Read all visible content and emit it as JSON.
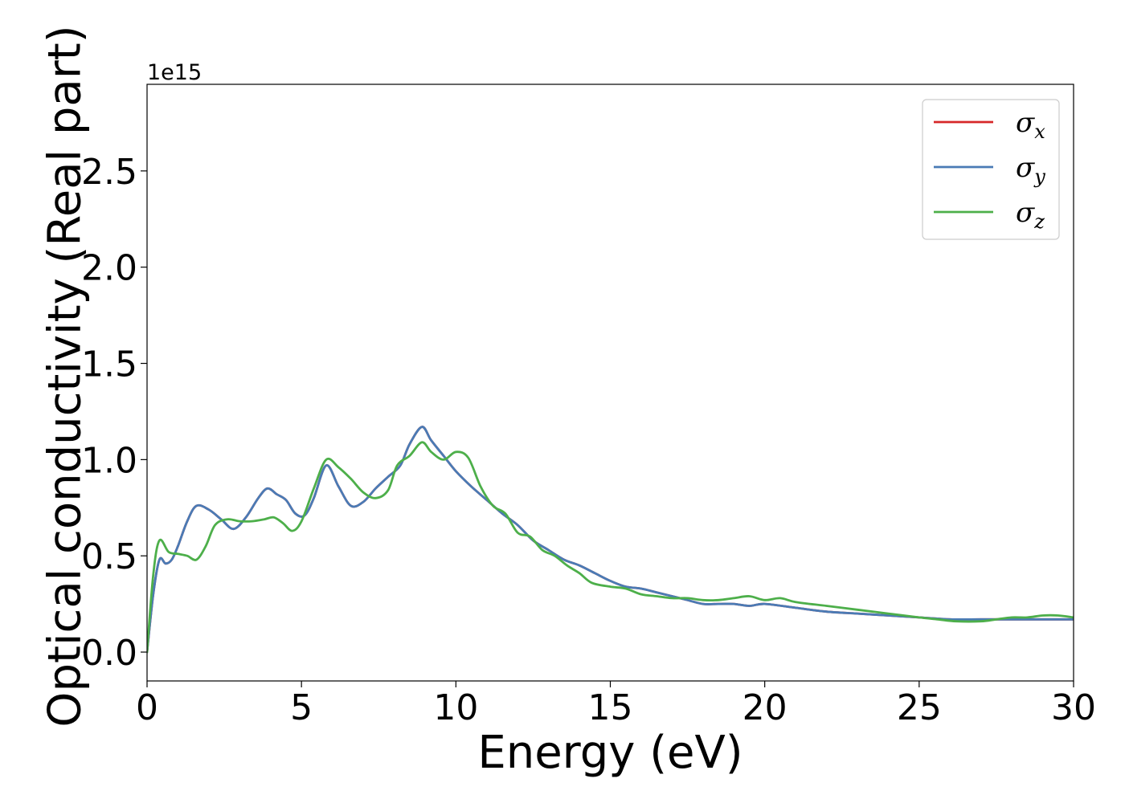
{
  "chart_data": {
    "type": "line",
    "title": "",
    "xlabel": "Energy (eV)",
    "ylabel": "Optical conductivity (Real part)",
    "y_offset_label": "1e15",
    "xlim": [
      0,
      30
    ],
    "ylim": [
      -0.15,
      2.95
    ],
    "x_ticks": [
      0,
      5,
      10,
      15,
      20,
      25,
      30
    ],
    "x_tick_labels": [
      "0",
      "5",
      "10",
      "15",
      "20",
      "25",
      "30"
    ],
    "y_ticks": [
      0.0,
      0.5,
      1.0,
      1.5,
      2.0,
      2.5
    ],
    "y_tick_labels": [
      "0.0",
      "0.5",
      "1.0",
      "1.5",
      "2.0",
      "2.5"
    ],
    "grid": false,
    "legend_position": "top-right",
    "series": [
      {
        "name": "σx",
        "legend_base": "σ",
        "legend_sub": "x",
        "color": "#d62728",
        "x": [
          0,
          0.2,
          0.4,
          0.6,
          0.8,
          1.0,
          1.3,
          1.6,
          2.0,
          2.4,
          2.8,
          3.2,
          3.6,
          3.9,
          4.2,
          4.5,
          4.8,
          5.1,
          5.4,
          5.8,
          6.2,
          6.6,
          7.0,
          7.4,
          7.8,
          8.2,
          8.5,
          8.9,
          9.2,
          9.6,
          10.0,
          10.5,
          11.0,
          11.5,
          12.0,
          12.5,
          13.0,
          13.5,
          14.0,
          14.5,
          15.0,
          15.5,
          16.0,
          16.5,
          17.0,
          17.5,
          18.0,
          18.5,
          19.0,
          19.5,
          20.0,
          21.0,
          22.0,
          23.0,
          24.0,
          25.0,
          26.0,
          27.0,
          28.0,
          29.0,
          30.0
        ],
        "y": [
          0.0,
          0.3,
          0.48,
          0.46,
          0.48,
          0.55,
          0.68,
          0.76,
          0.74,
          0.69,
          0.64,
          0.7,
          0.8,
          0.85,
          0.82,
          0.79,
          0.72,
          0.71,
          0.8,
          0.97,
          0.86,
          0.76,
          0.78,
          0.85,
          0.91,
          0.97,
          1.08,
          1.17,
          1.1,
          1.02,
          0.94,
          0.86,
          0.79,
          0.72,
          0.66,
          0.58,
          0.53,
          0.48,
          0.45,
          0.41,
          0.37,
          0.34,
          0.33,
          0.31,
          0.29,
          0.27,
          0.25,
          0.25,
          0.25,
          0.24,
          0.25,
          0.23,
          0.21,
          0.2,
          0.19,
          0.18,
          0.17,
          0.17,
          0.17,
          0.17,
          0.17
        ]
      },
      {
        "name": "σy",
        "legend_base": "σ",
        "legend_sub": "y",
        "color": "#4a7bb5",
        "x": [
          0,
          0.2,
          0.4,
          0.6,
          0.8,
          1.0,
          1.3,
          1.6,
          2.0,
          2.4,
          2.8,
          3.2,
          3.6,
          3.9,
          4.2,
          4.5,
          4.8,
          5.1,
          5.4,
          5.8,
          6.2,
          6.6,
          7.0,
          7.4,
          7.8,
          8.2,
          8.5,
          8.9,
          9.2,
          9.6,
          10.0,
          10.5,
          11.0,
          11.5,
          12.0,
          12.5,
          13.0,
          13.5,
          14.0,
          14.5,
          15.0,
          15.5,
          16.0,
          16.5,
          17.0,
          17.5,
          18.0,
          18.5,
          19.0,
          19.5,
          20.0,
          21.0,
          22.0,
          23.0,
          24.0,
          25.0,
          26.0,
          27.0,
          28.0,
          29.0,
          30.0
        ],
        "y": [
          0.0,
          0.3,
          0.48,
          0.46,
          0.48,
          0.55,
          0.68,
          0.76,
          0.74,
          0.69,
          0.64,
          0.7,
          0.8,
          0.85,
          0.82,
          0.79,
          0.72,
          0.71,
          0.8,
          0.97,
          0.86,
          0.76,
          0.78,
          0.85,
          0.91,
          0.97,
          1.08,
          1.17,
          1.1,
          1.02,
          0.94,
          0.86,
          0.79,
          0.72,
          0.66,
          0.58,
          0.53,
          0.48,
          0.45,
          0.41,
          0.37,
          0.34,
          0.33,
          0.31,
          0.29,
          0.27,
          0.25,
          0.25,
          0.25,
          0.24,
          0.25,
          0.23,
          0.21,
          0.2,
          0.19,
          0.18,
          0.17,
          0.17,
          0.17,
          0.17,
          0.17
        ]
      },
      {
        "name": "σz",
        "legend_base": "σ",
        "legend_sub": "z",
        "color": "#4daf4a",
        "x": [
          0,
          0.2,
          0.4,
          0.7,
          1.0,
          1.3,
          1.6,
          1.9,
          2.2,
          2.6,
          3.0,
          3.4,
          3.8,
          4.1,
          4.4,
          4.7,
          5.0,
          5.4,
          5.8,
          6.2,
          6.6,
          7.0,
          7.4,
          7.8,
          8.1,
          8.5,
          8.9,
          9.2,
          9.6,
          10.0,
          10.4,
          10.8,
          11.2,
          11.6,
          12.0,
          12.4,
          12.8,
          13.2,
          13.6,
          14.0,
          14.4,
          15.0,
          15.5,
          16.0,
          16.5,
          17.0,
          17.5,
          18.0,
          18.5,
          19.0,
          19.5,
          20.0,
          20.5,
          21.0,
          22.0,
          23.0,
          24.0,
          25.0,
          25.6,
          26.2,
          27.0,
          27.5,
          28.0,
          28.5,
          29.0,
          29.5,
          30.0
        ],
        "y": [
          0.0,
          0.4,
          0.58,
          0.52,
          0.51,
          0.5,
          0.48,
          0.55,
          0.66,
          0.69,
          0.68,
          0.68,
          0.69,
          0.7,
          0.67,
          0.63,
          0.68,
          0.85,
          1.0,
          0.96,
          0.9,
          0.83,
          0.8,
          0.84,
          0.97,
          1.02,
          1.09,
          1.04,
          1.0,
          1.04,
          1.01,
          0.86,
          0.76,
          0.72,
          0.62,
          0.6,
          0.53,
          0.5,
          0.45,
          0.41,
          0.36,
          0.34,
          0.33,
          0.3,
          0.29,
          0.28,
          0.28,
          0.27,
          0.27,
          0.28,
          0.29,
          0.27,
          0.28,
          0.26,
          0.24,
          0.22,
          0.2,
          0.18,
          0.17,
          0.16,
          0.16,
          0.17,
          0.18,
          0.18,
          0.19,
          0.19,
          0.18
        ]
      }
    ]
  }
}
